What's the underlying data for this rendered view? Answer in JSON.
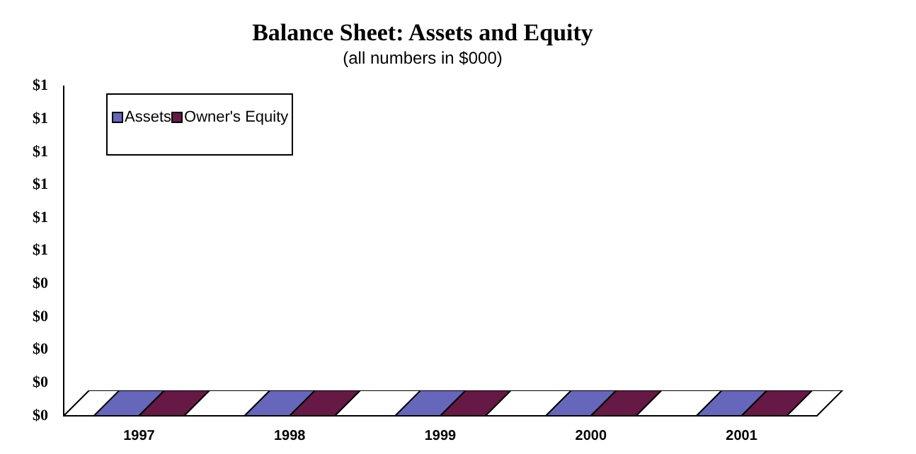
{
  "chart_data": {
    "type": "bar",
    "title": "Balance Sheet: Assets and Equity",
    "subtitle": "(all numbers in $000)",
    "categories": [
      "1997",
      "1998",
      "1999",
      "2000",
      "2001"
    ],
    "series": [
      {
        "name": "Assets",
        "color": "#6666bb",
        "values": [
          0,
          0,
          0,
          0,
          0
        ]
      },
      {
        "name": "Owner's Equity",
        "color": "#661944",
        "values": [
          0,
          0,
          0,
          0,
          0
        ]
      }
    ],
    "ylim": [
      0,
      1
    ],
    "yticks": [
      {
        "value": 0,
        "label": "$0"
      },
      {
        "value": 0.1,
        "label": "$0"
      },
      {
        "value": 0.2,
        "label": "$0"
      },
      {
        "value": 0.3,
        "label": "$0"
      },
      {
        "value": 0.4,
        "label": "$0"
      },
      {
        "value": 0.5,
        "label": "$1"
      },
      {
        "value": 0.6,
        "label": "$1"
      },
      {
        "value": 0.7,
        "label": "$1"
      },
      {
        "value": 0.8,
        "label": "$1"
      },
      {
        "value": 0.9,
        "label": "$1"
      },
      {
        "value": 1,
        "label": "$1"
      }
    ],
    "grid": false,
    "legend": "top left"
  }
}
